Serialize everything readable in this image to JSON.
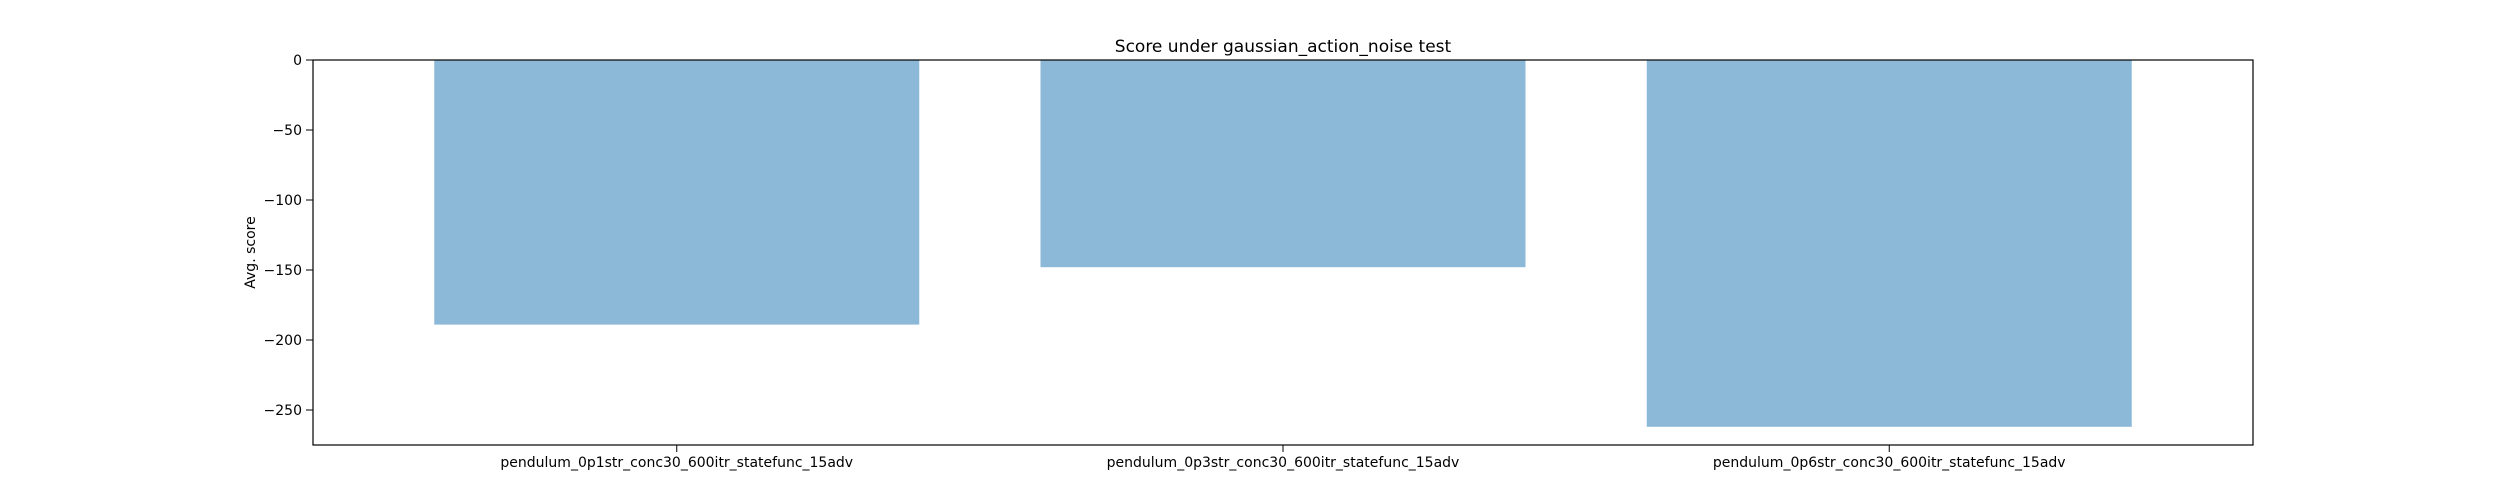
{
  "chart_data": {
    "type": "bar",
    "title": "Score under gaussian_action_noise test",
    "xlabel": "",
    "ylabel": "Avg. score",
    "categories": [
      "pendulum_0p1str_conc30_600itr_statefunc_15adv",
      "pendulum_0p3str_conc30_600itr_statefunc_15adv",
      "pendulum_0p6str_conc30_600itr_statefunc_15adv"
    ],
    "values": [
      -189,
      -148,
      -262
    ],
    "ylim": [
      -275,
      0
    ],
    "yticks": [
      0,
      -50,
      -100,
      -150,
      -200,
      -250
    ],
    "ytick_labels": [
      "0",
      "−50",
      "−100",
      "−150",
      "−200",
      "−250"
    ],
    "bar_color": "#8db9d9",
    "grid": false,
    "legend": "none"
  }
}
